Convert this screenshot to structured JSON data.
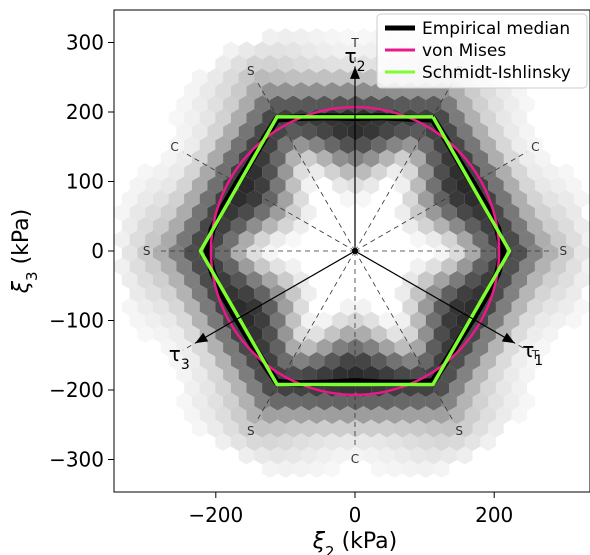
{
  "chart_data": {
    "type": "scatter",
    "title": "",
    "xlabel_sym": "ξ",
    "xlabel_sub": "2",
    "xlabel_unit": " (kPa)",
    "ylabel_sym": "ξ",
    "ylabel_sub": "3",
    "ylabel_unit": " (kPa)",
    "xlim": [
      -350,
      340
    ],
    "ylim": [
      -350,
      350
    ],
    "xticks": [
      -200,
      0,
      200
    ],
    "yticks": [
      -300,
      -200,
      -100,
      0,
      100,
      200,
      300
    ],
    "xtick_labels": [
      "−200",
      "0",
      "200"
    ],
    "ytick_labels": [
      "−300",
      "−200",
      "−100",
      "0",
      "100",
      "200",
      "300"
    ],
    "legend_position": "top-right",
    "series": [
      {
        "name": "Empirical median",
        "color": "#000000",
        "points": [
          [
            0,
            192
          ],
          [
            40,
            193
          ],
          [
            80,
            191
          ],
          [
            112,
            190
          ],
          [
            130,
            162
          ],
          [
            150,
            128
          ],
          [
            170,
            96
          ],
          [
            190,
            62
          ],
          [
            205,
            32
          ],
          [
            212,
            0
          ],
          [
            205,
            -32
          ],
          [
            190,
            -62
          ],
          [
            170,
            -96
          ],
          [
            150,
            -128
          ],
          [
            130,
            -160
          ],
          [
            112,
            -188
          ],
          [
            80,
            -190
          ],
          [
            40,
            -190
          ],
          [
            0,
            -188
          ],
          [
            -40,
            -190
          ],
          [
            -80,
            -191
          ],
          [
            -112,
            -189
          ],
          [
            -132,
            -160
          ],
          [
            -152,
            -127
          ],
          [
            -172,
            -94
          ],
          [
            -192,
            -60
          ],
          [
            -205,
            -30
          ],
          [
            -212,
            0
          ],
          [
            -205,
            32
          ],
          [
            -190,
            62
          ],
          [
            -170,
            96
          ],
          [
            -150,
            128
          ],
          [
            -130,
            162
          ],
          [
            -112,
            190
          ],
          [
            -80,
            192
          ],
          [
            -40,
            193
          ],
          [
            0,
            192
          ]
        ]
      },
      {
        "name": "von Mises",
        "color": "#e8198b",
        "radius": 207
      },
      {
        "name": "Schmidt-Ishlinsky",
        "color": "#7dff2f",
        "points": [
          [
            112,
            193
          ],
          [
            222,
            0
          ],
          [
            112,
            -192
          ],
          [
            -112,
            -192
          ],
          [
            -222,
            0
          ],
          [
            -112,
            193
          ],
          [
            112,
            193
          ]
        ]
      }
    ],
    "direction_labels": [
      {
        "label": "T",
        "angle": 90
      },
      {
        "label": "S",
        "angle": 120
      },
      {
        "label": "C",
        "angle": 150
      },
      {
        "label": "S",
        "angle": 180
      },
      {
        "label": "T",
        "angle": 210
      },
      {
        "label": "S",
        "angle": 240
      },
      {
        "label": "C",
        "angle": 270
      },
      {
        "label": "S",
        "angle": 300
      },
      {
        "label": "T",
        "angle": 330
      },
      {
        "label": "S",
        "angle": 0
      },
      {
        "label": "C",
        "angle": 30
      },
      {
        "label": "S",
        "angle": 60
      }
    ],
    "tau_axes": [
      {
        "sym": "τ",
        "sub": "1",
        "angle": -30
      },
      {
        "sym": "τ",
        "sub": "2",
        "angle": 90
      },
      {
        "sym": "τ",
        "sub": "3",
        "angle": 210
      }
    ]
  }
}
